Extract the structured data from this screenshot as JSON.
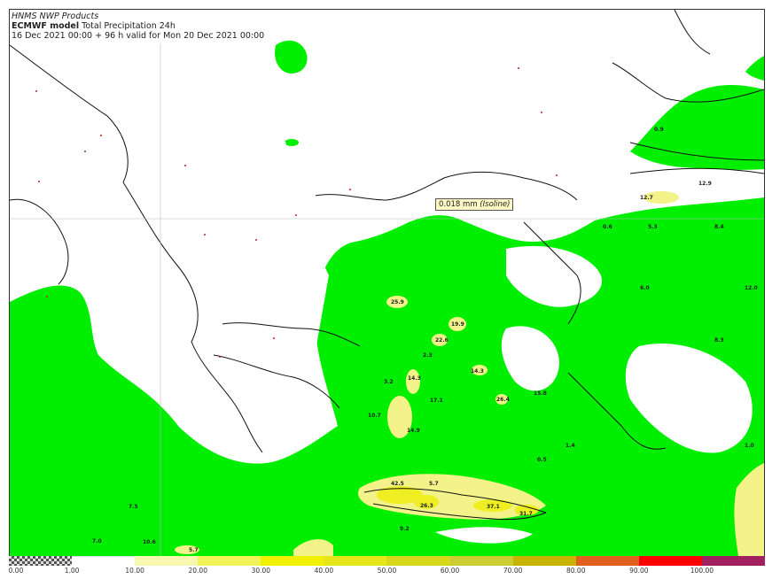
{
  "header": {
    "product": "HNMS NWP Products",
    "model_name": "ECMWF model",
    "field": "Total Precipitation 24h",
    "run_line": "16 Dec 2021 00:00 + 96 h valid for Mon 20 Dec 2021 00:00"
  },
  "tooltip": {
    "value": "0.018 mm",
    "unit_note": "(Isoline)"
  },
  "legend": {
    "labels": [
      "0.00",
      "1.00",
      "10.00",
      "20.00",
      "30.00",
      "40.00",
      "50.00",
      "60.00",
      "70.00",
      "80.00",
      "90.00",
      "100.00"
    ],
    "colors": [
      "checker",
      "#ffffff",
      "#f7f7b0",
      "#f2f259",
      "#f0f000",
      "#e6e61a",
      "#d8d81a",
      "#cccc33",
      "#c8b400",
      "#e06020",
      "#ff0000",
      "#a02060"
    ]
  },
  "map_colors": {
    "light": "#00ee00",
    "moderate": "#f3f38a",
    "heavy": "#eeee22"
  },
  "values": [
    {
      "t": "25.9"
    },
    {
      "t": "19.9"
    },
    {
      "t": "22.6"
    },
    {
      "t": "2.3"
    },
    {
      "t": "14.3"
    },
    {
      "t": "10.7"
    },
    {
      "t": "14.9"
    },
    {
      "t": "5.7"
    },
    {
      "t": "42.5"
    },
    {
      "t": "26.3"
    },
    {
      "t": "37.1"
    },
    {
      "t": "31.7"
    },
    {
      "t": "9.2"
    },
    {
      "t": "7.5"
    },
    {
      "t": "7.0"
    },
    {
      "t": "10.6"
    },
    {
      "t": "5.7"
    },
    {
      "t": "15.8"
    },
    {
      "t": "1.4"
    },
    {
      "t": "0.5"
    },
    {
      "t": "1.0"
    },
    {
      "t": "8.3"
    },
    {
      "t": "6.0"
    },
    {
      "t": "12.0"
    },
    {
      "t": "0.6"
    },
    {
      "t": "5.3"
    },
    {
      "t": "8.4"
    },
    {
      "t": "12.7"
    },
    {
      "t": "12.9"
    },
    {
      "t": "0.9"
    },
    {
      "t": "14.3"
    },
    {
      "t": "26.4"
    },
    {
      "t": "3.2"
    },
    {
      "t": "17.1"
    }
  ]
}
